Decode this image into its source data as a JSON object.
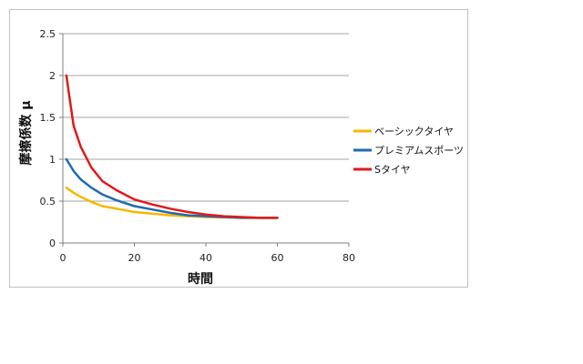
{
  "chart_data": {
    "type": "line",
    "title": "",
    "xlabel": "時間",
    "ylabel": "摩擦係数 μ",
    "xlim": [
      0,
      80
    ],
    "ylim": [
      0,
      2.5
    ],
    "xticks": [
      0,
      20,
      40,
      60,
      80
    ],
    "yticks": [
      0,
      0.5,
      1,
      1.5,
      2,
      2.5
    ],
    "ytick_labels": [
      "0",
      "0.5",
      "1",
      "1.5",
      "2",
      "2.5"
    ],
    "grid": "horizontal",
    "legend_position": "right",
    "series": [
      {
        "name": "ベーシックタイヤ",
        "color": "#f5b800",
        "x": [
          1,
          3,
          5,
          8,
          11,
          15,
          20,
          25,
          30,
          35,
          40,
          45,
          50,
          55,
          60
        ],
        "y": [
          0.66,
          0.6,
          0.55,
          0.49,
          0.44,
          0.41,
          0.37,
          0.35,
          0.33,
          0.32,
          0.31,
          0.305,
          0.3,
          0.3,
          0.3
        ]
      },
      {
        "name": "プレミアムスポーツ",
        "color": "#1f6bb0",
        "x": [
          1,
          3,
          5,
          8,
          11,
          15,
          20,
          25,
          30,
          35,
          40,
          45,
          50,
          55,
          60
        ],
        "y": [
          1.0,
          0.86,
          0.76,
          0.66,
          0.58,
          0.51,
          0.44,
          0.4,
          0.36,
          0.33,
          0.32,
          0.31,
          0.3,
          0.3,
          0.3
        ]
      },
      {
        "name": "Sタイヤ",
        "color": "#e01a1a",
        "x": [
          1,
          2,
          3,
          5,
          8,
          11,
          15,
          20,
          25,
          30,
          35,
          40,
          45,
          50,
          55,
          60
        ],
        "y": [
          2.0,
          1.7,
          1.4,
          1.15,
          0.9,
          0.74,
          0.63,
          0.52,
          0.46,
          0.41,
          0.37,
          0.34,
          0.32,
          0.31,
          0.3,
          0.3
        ]
      }
    ]
  }
}
